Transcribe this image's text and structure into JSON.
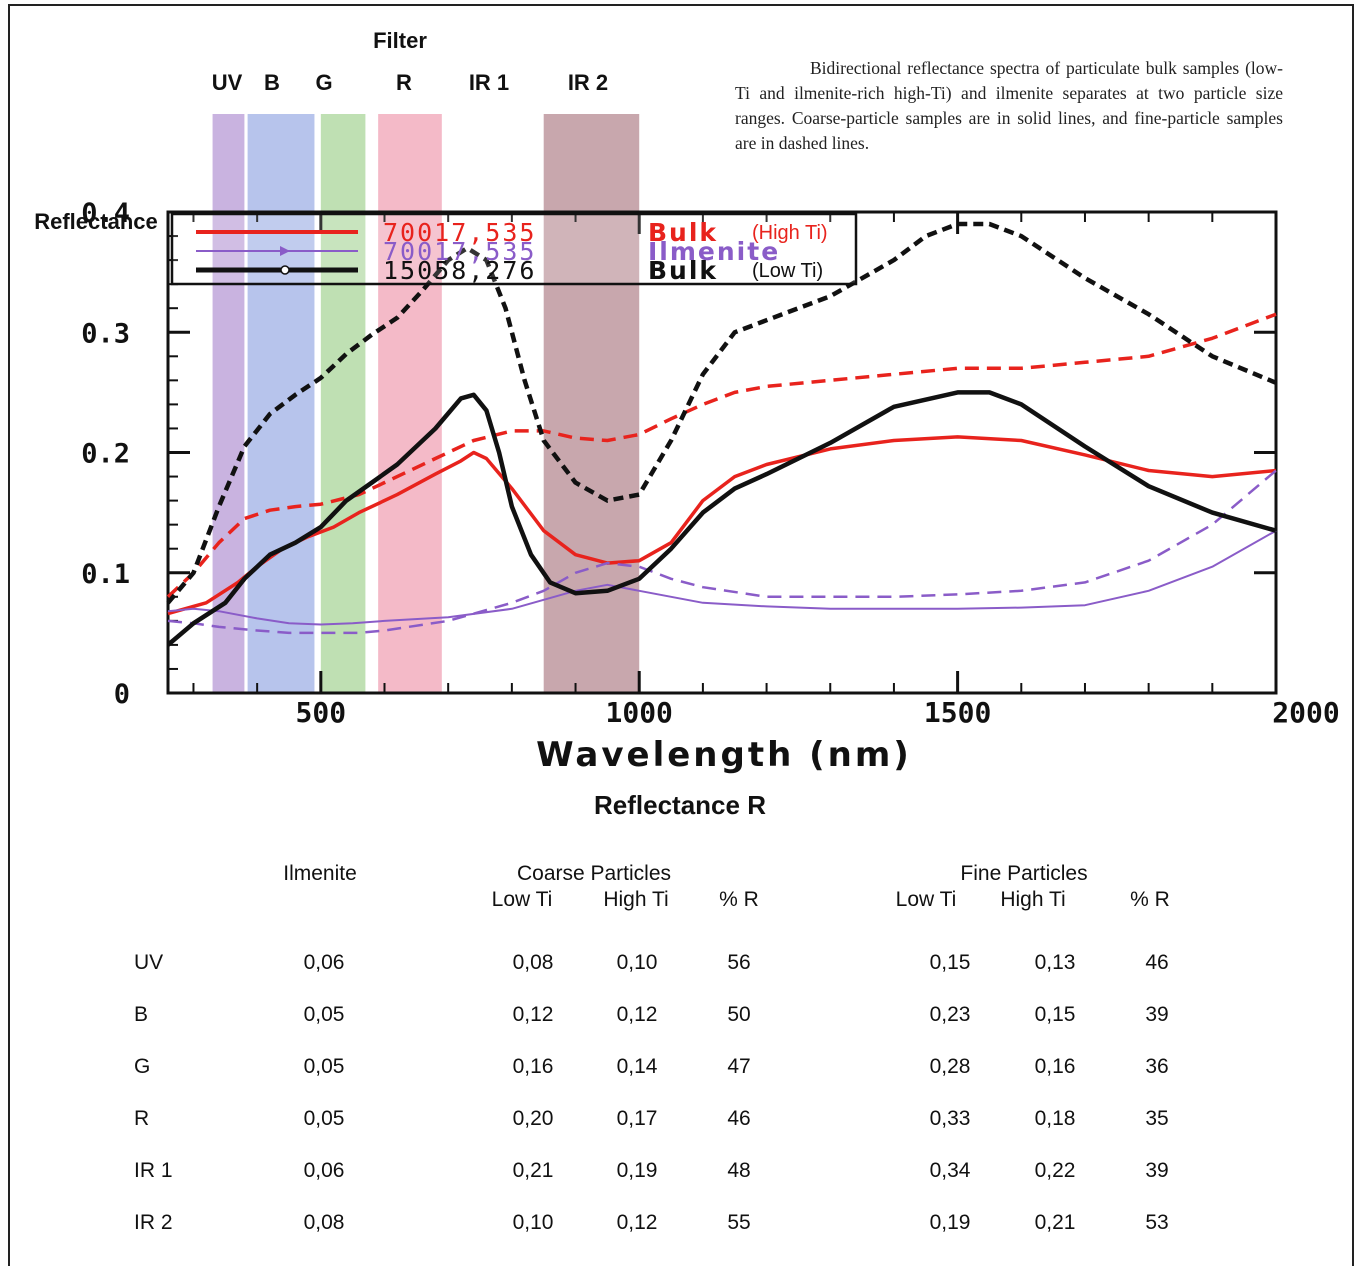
{
  "caption": "Bidirectional reflectance spectra of particulate bulk samples (low-Ti and ilmenite-rich high-Ti) and ilmenite separates at two particle size ranges. Coarse-particle samples are in solid lines, and fine-particle samples are in dashed lines.",
  "chart_data": {
    "type": "line",
    "ylabel": "Reflectance",
    "xlabel": "Wavelength (nm)",
    "xlim": [
      260,
      2000
    ],
    "ylim": [
      0,
      0.4
    ],
    "x_ticks": [
      "500",
      "1000",
      "1500",
      "2000"
    ],
    "y_ticks": [
      "0",
      "0.1",
      "0.2",
      "0.3",
      "0.4"
    ],
    "filter_header": "Filter",
    "filters": [
      {
        "name": "UV",
        "range": [
          330,
          380
        ],
        "color": "#b79ad6"
      },
      {
        "name": "B",
        "range": [
          385,
          490
        ],
        "color": "#9fb0e6"
      },
      {
        "name": "G",
        "range": [
          500,
          570
        ],
        "color": "#a9d69a"
      },
      {
        "name": "R",
        "range": [
          590,
          690
        ],
        "color": "#f0a3b6"
      },
      {
        "name": "IR 1",
        "range": [],
        "color": ""
      },
      {
        "name": "IR 2",
        "range": [
          850,
          1000
        ],
        "color": "#b58a92"
      }
    ],
    "legend": [
      {
        "id": "70017,535",
        "label": "Bulk",
        "note": "(High Ti)",
        "color": "#e8231d"
      },
      {
        "id": "70017,535",
        "label": "Ilmenite",
        "note": "",
        "color": "#8a5cc8"
      },
      {
        "id": "15058,276",
        "label": "Bulk",
        "note": "(Low Ti)",
        "color": "#111111"
      }
    ],
    "series": [
      {
        "name": "",
        "color": "#e8231d",
        "style": "solid",
        "width": 3.5,
        "x": [
          260,
          320,
          370,
          400,
          440,
          480,
          520,
          560,
          620,
          680,
          720,
          740,
          760,
          800,
          850,
          900,
          950,
          1000,
          1050,
          1100,
          1150,
          1200,
          1300,
          1400,
          1500,
          1600,
          1700,
          1800,
          1900,
          2000
        ],
        "y": [
          0.066,
          0.075,
          0.092,
          0.105,
          0.12,
          0.13,
          0.138,
          0.15,
          0.165,
          0.182,
          0.193,
          0.2,
          0.195,
          0.17,
          0.135,
          0.115,
          0.108,
          0.11,
          0.125,
          0.16,
          0.18,
          0.19,
          0.203,
          0.21,
          0.213,
          0.21,
          0.198,
          0.185,
          0.18,
          0.185
        ]
      },
      {
        "name": "",
        "color": "#e8231d",
        "style": "dashed",
        "width": 3.5,
        "x": [
          260,
          300,
          340,
          380,
          420,
          460,
          500,
          560,
          620,
          680,
          740,
          800,
          850,
          900,
          950,
          1000,
          1050,
          1100,
          1150,
          1200,
          1300,
          1400,
          1500,
          1600,
          1700,
          1800,
          1900,
          2000
        ],
        "y": [
          0.08,
          0.1,
          0.125,
          0.145,
          0.152,
          0.155,
          0.157,
          0.165,
          0.18,
          0.195,
          0.21,
          0.218,
          0.218,
          0.212,
          0.21,
          0.215,
          0.228,
          0.24,
          0.25,
          0.255,
          0.26,
          0.265,
          0.27,
          0.27,
          0.275,
          0.28,
          0.295,
          0.315
        ]
      },
      {
        "name": "",
        "color": "#8a5cc8",
        "style": "solid",
        "width": 2,
        "x": [
          260,
          300,
          340,
          400,
          450,
          500,
          550,
          600,
          700,
          800,
          900,
          950,
          1000,
          1100,
          1200,
          1300,
          1400,
          1500,
          1600,
          1700,
          1800,
          1900,
          2000
        ],
        "y": [
          0.068,
          0.07,
          0.068,
          0.062,
          0.058,
          0.057,
          0.058,
          0.06,
          0.063,
          0.07,
          0.085,
          0.09,
          0.085,
          0.075,
          0.072,
          0.07,
          0.07,
          0.07,
          0.071,
          0.073,
          0.085,
          0.105,
          0.135
        ]
      },
      {
        "name": "",
        "color": "#8a5cc8",
        "style": "dashed",
        "width": 2.5,
        "x": [
          260,
          300,
          340,
          400,
          450,
          500,
          560,
          600,
          700,
          800,
          850,
          900,
          950,
          1000,
          1050,
          1100,
          1200,
          1300,
          1400,
          1500,
          1600,
          1700,
          1800,
          1900,
          2000
        ],
        "y": [
          0.06,
          0.058,
          0.055,
          0.052,
          0.05,
          0.05,
          0.05,
          0.052,
          0.06,
          0.075,
          0.085,
          0.1,
          0.108,
          0.105,
          0.095,
          0.088,
          0.08,
          0.08,
          0.08,
          0.082,
          0.085,
          0.092,
          0.11,
          0.14,
          0.185
        ]
      },
      {
        "name": "",
        "color": "#111111",
        "style": "solid",
        "width": 4.5,
        "x": [
          260,
          300,
          350,
          380,
          420,
          460,
          500,
          540,
          580,
          620,
          680,
          720,
          740,
          760,
          780,
          800,
          830,
          860,
          900,
          950,
          1000,
          1050,
          1100,
          1150,
          1200,
          1300,
          1400,
          1500,
          1550,
          1600,
          1700,
          1800,
          1900,
          2000
        ],
        "y": [
          0.04,
          0.058,
          0.075,
          0.095,
          0.115,
          0.125,
          0.138,
          0.16,
          0.175,
          0.19,
          0.22,
          0.245,
          0.248,
          0.235,
          0.2,
          0.155,
          0.115,
          0.092,
          0.083,
          0.085,
          0.095,
          0.12,
          0.15,
          0.17,
          0.182,
          0.208,
          0.238,
          0.25,
          0.25,
          0.24,
          0.205,
          0.172,
          0.15,
          0.135
        ]
      },
      {
        "name": "",
        "color": "#111111",
        "style": "dashed",
        "width": 4.5,
        "x": [
          260,
          300,
          340,
          380,
          420,
          460,
          500,
          540,
          580,
          620,
          660,
          700,
          730,
          760,
          790,
          820,
          850,
          900,
          950,
          1000,
          1050,
          1100,
          1150,
          1200,
          1300,
          1400,
          1450,
          1500,
          1550,
          1600,
          1700,
          1800,
          1900,
          2000
        ],
        "y": [
          0.075,
          0.1,
          0.155,
          0.205,
          0.232,
          0.248,
          0.262,
          0.282,
          0.298,
          0.312,
          0.335,
          0.36,
          0.37,
          0.36,
          0.32,
          0.26,
          0.21,
          0.175,
          0.16,
          0.165,
          0.21,
          0.265,
          0.3,
          0.31,
          0.33,
          0.36,
          0.38,
          0.39,
          0.39,
          0.38,
          0.345,
          0.315,
          0.28,
          0.258
        ]
      }
    ]
  },
  "table": {
    "title": "Reflectance R",
    "ilmenite_header": "Ilmenite",
    "coarse_header": "Coarse Particles",
    "fine_header": "Fine Particles",
    "sub_headers": [
      "Low Ti",
      "High Ti",
      "% R",
      "Low Ti",
      "High Ti",
      "% R"
    ],
    "rows": [
      {
        "band": "UV",
        "ilmenite": "0,06",
        "coarse_low": "0,08",
        "coarse_high": "0,10",
        "coarse_r": "56",
        "fine_low": "0,15",
        "fine_high": "0,13",
        "fine_r": "46"
      },
      {
        "band": "B",
        "ilmenite": "0,05",
        "coarse_low": "0,12",
        "coarse_high": "0,12",
        "coarse_r": "50",
        "fine_low": "0,23",
        "fine_high": "0,15",
        "fine_r": "39"
      },
      {
        "band": "G",
        "ilmenite": "0,05",
        "coarse_low": "0,16",
        "coarse_high": "0,14",
        "coarse_r": "47",
        "fine_low": "0,28",
        "fine_high": "0,16",
        "fine_r": "36"
      },
      {
        "band": "R",
        "ilmenite": "0,05",
        "coarse_low": "0,20",
        "coarse_high": "0,17",
        "coarse_r": "46",
        "fine_low": "0,33",
        "fine_high": "0,18",
        "fine_r": "35"
      },
      {
        "band": "IR 1",
        "ilmenite": "0,06",
        "coarse_low": "0,21",
        "coarse_high": "0,19",
        "coarse_r": "48",
        "fine_low": "0,34",
        "fine_high": "0,22",
        "fine_r": "39"
      },
      {
        "band": "IR 2",
        "ilmenite": "0,08",
        "coarse_low": "0,10",
        "coarse_high": "0,12",
        "coarse_r": "55",
        "fine_low": "0,19",
        "fine_high": "0,21",
        "fine_r": "53"
      }
    ]
  }
}
